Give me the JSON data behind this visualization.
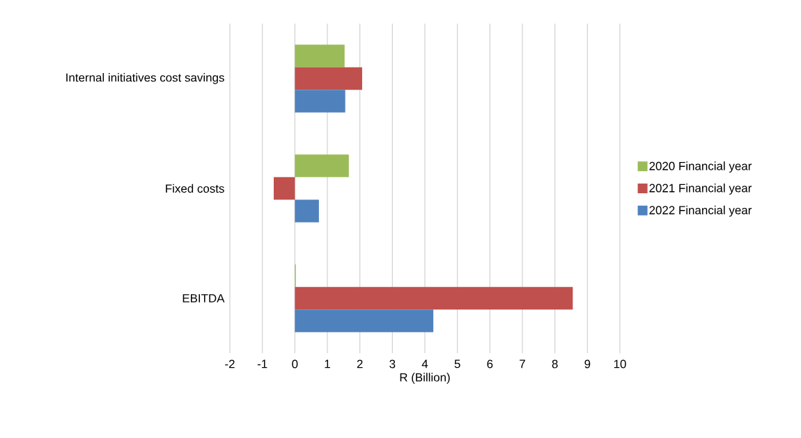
{
  "chart_data": {
    "type": "bar",
    "orientation": "horizontal",
    "xlabel": "R (Billion)",
    "categories": [
      "Internal initiatives cost savings",
      "Fixed costs",
      "EBITDA"
    ],
    "series": [
      {
        "name": "2020 Financial year",
        "color": "#9bbb59",
        "values": [
          1.53,
          1.66,
          0.03
        ]
      },
      {
        "name": "2021 Financial year",
        "color": "#c0504d",
        "values": [
          2.07,
          -0.65,
          8.55
        ]
      },
      {
        "name": "2022 Financial year",
        "color": "#4f81bd",
        "values": [
          1.55,
          0.74,
          4.26
        ]
      }
    ],
    "xlim": [
      -2,
      10
    ],
    "xticks": [
      -2,
      -1,
      0,
      1,
      2,
      3,
      4,
      5,
      6,
      7,
      8,
      9,
      10
    ],
    "grid": "x",
    "legend": "right"
  }
}
